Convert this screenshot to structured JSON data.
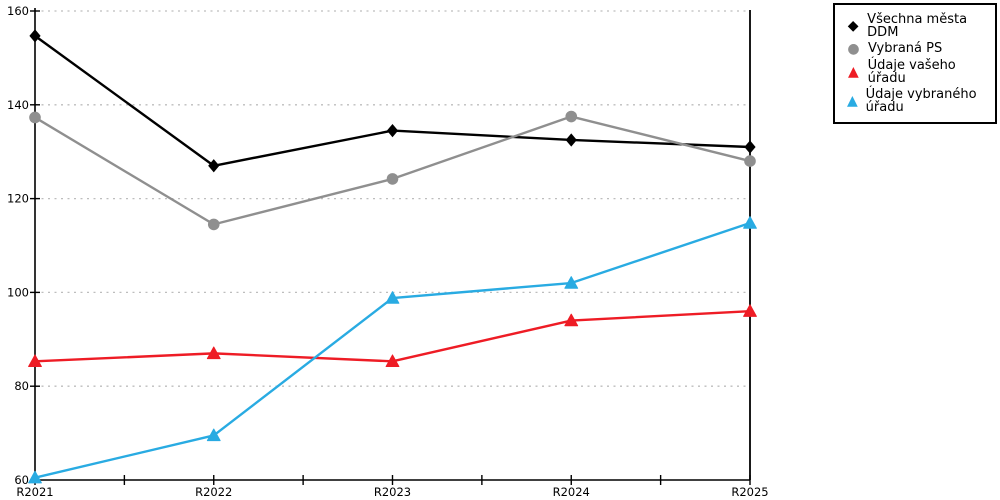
{
  "chart_data": {
    "type": "line",
    "title": "",
    "xlabel": "",
    "ylabel": "",
    "categories": [
      "R2021",
      "R2022",
      "R2023",
      "R2024",
      "R2025"
    ],
    "y_ticks": [
      60,
      80,
      100,
      120,
      140,
      160
    ],
    "ylim": [
      60,
      160
    ],
    "grid": "horizontal-dotted",
    "gridline_color": "#bdbdbd",
    "axis_color": "#000000",
    "legend_position": "top-right",
    "legend_border_color": "#000000",
    "series": [
      {
        "name": "Všechna města DDM",
        "color": "#000000",
        "marker": "diamond",
        "values": [
          154.7,
          127,
          134.5,
          132.5,
          131
        ]
      },
      {
        "name": "Vybraná PS",
        "color": "#8f8f8f",
        "marker": "circle",
        "values": [
          137.3,
          114.5,
          124.2,
          137.5,
          128
        ]
      },
      {
        "name": "Údaje vašeho úřadu",
        "color": "#ee1c25",
        "marker": "triangle",
        "values": [
          85.3,
          87,
          85.3,
          94,
          96
        ]
      },
      {
        "name": "Údaje vybraného úřadu",
        "color": "#29abe2",
        "marker": "triangle",
        "values": [
          60.5,
          69.5,
          98.8,
          102,
          114.8
        ]
      }
    ]
  }
}
